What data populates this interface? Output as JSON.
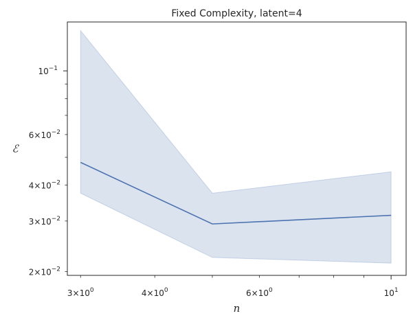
{
  "chart_data": {
    "type": "line",
    "title": "Fixed Complexity, latent=4",
    "xlabel": "n",
    "ylabel": "ℰ",
    "xscale": "log",
    "yscale": "log",
    "xlim": [
      2.85,
      10.6
    ],
    "ylim": [
      0.0194,
      0.148
    ],
    "grid": false,
    "legend": "none",
    "x": [
      3,
      5,
      10
    ],
    "series": [
      {
        "color": "#4c72b0",
        "values": [
          0.048,
          0.0293,
          0.0314
        ],
        "ci_lower": [
          0.0375,
          0.0224,
          0.0214
        ],
        "ci_upper": [
          0.138,
          0.0375,
          0.0445
        ]
      }
    ],
    "x_major_ticks": [
      {
        "value": 10,
        "base": "10",
        "exp": "1"
      }
    ],
    "x_minor_ticks": [
      {
        "value": 3,
        "mant": "3",
        "base": "10",
        "exp": "0"
      },
      {
        "value": 4,
        "mant": "4",
        "base": "10",
        "exp": "0"
      },
      {
        "value": 6,
        "mant": "6",
        "base": "10",
        "exp": "0"
      }
    ],
    "x_minor_unlabeled": [
      5,
      7,
      8,
      9
    ],
    "y_major_ticks": [
      {
        "value": 0.1,
        "base": "10",
        "exp": "−1"
      }
    ],
    "y_minor_ticks": [
      {
        "value": 0.02,
        "mant": "2",
        "base": "10",
        "exp": "−2"
      },
      {
        "value": 0.03,
        "mant": "3",
        "base": "10",
        "exp": "−2"
      },
      {
        "value": 0.04,
        "mant": "4",
        "base": "10",
        "exp": "−2"
      },
      {
        "value": 0.06,
        "mant": "6",
        "base": "10",
        "exp": "−2"
      }
    ],
    "y_minor_unlabeled": [
      0.05,
      0.07,
      0.08,
      0.09
    ]
  }
}
